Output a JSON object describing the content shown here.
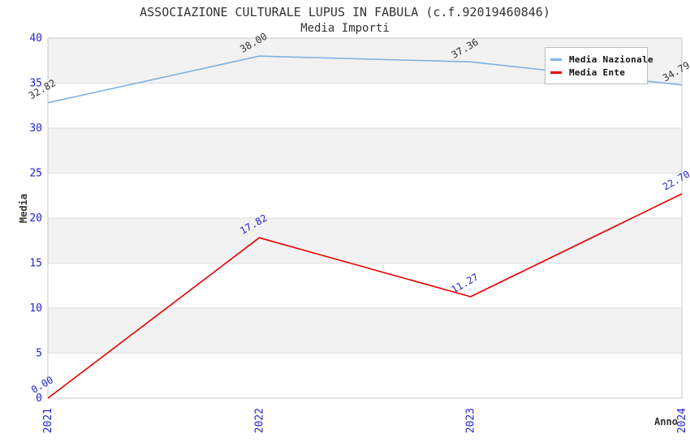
{
  "chart_data": {
    "type": "line",
    "title": "ASSOCIAZIONE CULTURALE LUPUS IN FABULA (c.f.92019460846)",
    "subtitle": "Media Importi",
    "xlabel": "Anno",
    "ylabel": "Media",
    "categories": [
      "2021",
      "2022",
      "2023",
      "2024"
    ],
    "ylim": [
      0,
      40
    ],
    "ytick_step": 5,
    "grid": "horizontal gridlines with alternating gray/white bands",
    "legend_position": "top-right",
    "series": [
      {
        "name": "Media Nazionale",
        "color": "#7EB2E4",
        "label_color": "#333333",
        "values": [
          32.82,
          38.0,
          37.36,
          34.79
        ]
      },
      {
        "name": "Media Ente",
        "color": "#E80000",
        "label_color": "#2626C9",
        "values": [
          0.0,
          17.82,
          11.27,
          22.7
        ]
      }
    ],
    "colors": {
      "tick_label": "#2323CC",
      "band_fill": "#F2F2F2",
      "gridline": "#DCDCDC",
      "plot_border": "#C8C8C8",
      "text": "#333333",
      "background": "#FFFFFF"
    }
  }
}
